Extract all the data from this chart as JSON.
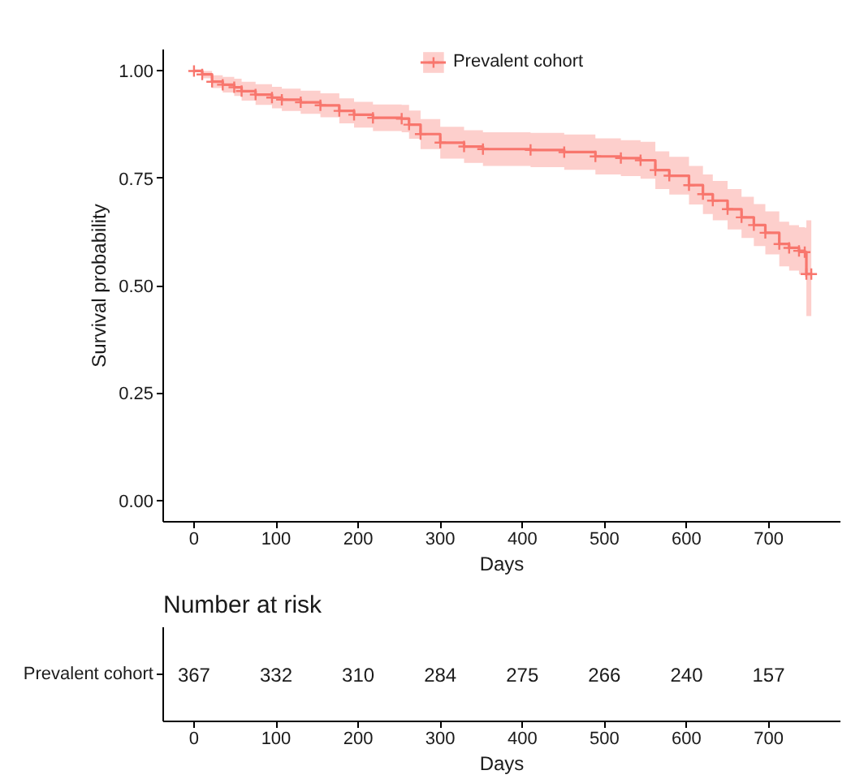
{
  "chart_data": [
    {
      "type": "step",
      "xlabel": "Days",
      "ylabel": "Survival probability",
      "xlim": [
        -37.5,
        787.5
      ],
      "ylim": [
        -0.05,
        1.05
      ],
      "xticks": [
        0,
        100,
        200,
        300,
        400,
        500,
        600,
        700
      ],
      "yticks": [
        {
          "value": 0,
          "label": "0.00"
        },
        {
          "value": 0.25,
          "label": "0.25"
        },
        {
          "value": 0.5,
          "label": "0.50"
        },
        {
          "value": 0.75,
          "label": "0.75"
        },
        {
          "value": 1,
          "label": "1.00"
        }
      ],
      "legend": "top",
      "marker": "cross",
      "series": [
        {
          "name": "Prevalent cohort",
          "color": "#f8766d",
          "x": [
            0,
            10,
            22,
            35,
            49,
            58,
            75,
            95,
            107,
            130,
            154,
            177,
            195,
            218,
            253,
            262,
            276,
            300,
            329,
            352,
            410,
            451,
            489,
            520,
            544,
            562,
            579,
            603,
            620,
            632,
            650,
            667,
            682,
            696,
            713,
            725,
            737,
            744,
            746,
            752
          ],
          "values": [
            1.0,
            0.992,
            0.975,
            0.968,
            0.962,
            0.953,
            0.945,
            0.938,
            0.933,
            0.927,
            0.92,
            0.907,
            0.898,
            0.891,
            0.889,
            0.875,
            0.853,
            0.833,
            0.824,
            0.818,
            0.816,
            0.811,
            0.801,
            0.797,
            0.792,
            0.769,
            0.756,
            0.734,
            0.713,
            0.698,
            0.678,
            0.659,
            0.641,
            0.623,
            0.597,
            0.588,
            0.581,
            0.578,
            0.527,
            0.527
          ],
          "lower": [
            1.0,
            0.983,
            0.96,
            0.95,
            0.942,
            0.931,
            0.921,
            0.913,
            0.907,
            0.9,
            0.892,
            0.878,
            0.868,
            0.86,
            0.857,
            0.842,
            0.818,
            0.796,
            0.786,
            0.779,
            0.776,
            0.77,
            0.759,
            0.755,
            0.749,
            0.725,
            0.712,
            0.689,
            0.667,
            0.652,
            0.631,
            0.611,
            0.592,
            0.573,
            0.545,
            0.535,
            0.526,
            0.521,
            0.429,
            0.429
          ],
          "upper": [
            1.0,
            1.0,
            0.99,
            0.986,
            0.982,
            0.975,
            0.969,
            0.963,
            0.959,
            0.954,
            0.948,
            0.936,
            0.928,
            0.922,
            0.921,
            0.908,
            0.888,
            0.87,
            0.862,
            0.857,
            0.856,
            0.852,
            0.843,
            0.839,
            0.835,
            0.813,
            0.8,
            0.779,
            0.759,
            0.744,
            0.725,
            0.707,
            0.69,
            0.673,
            0.649,
            0.641,
            0.636,
            0.635,
            0.652,
            0.652
          ]
        }
      ]
    },
    {
      "type": "heatmap",
      "title": "Number at risk",
      "xlabel": "Days",
      "xlim": [
        -37.5,
        787.5
      ],
      "xticks": [
        0,
        100,
        200,
        300,
        400,
        500,
        600,
        700
      ],
      "x": [
        0,
        100,
        200,
        300,
        400,
        500,
        600,
        700
      ],
      "data_labels": true,
      "y_categories": [
        "Prevalent cohort"
      ],
      "cells": [
        [
          367,
          332,
          310,
          284,
          275,
          266,
          240,
          157
        ]
      ]
    }
  ]
}
